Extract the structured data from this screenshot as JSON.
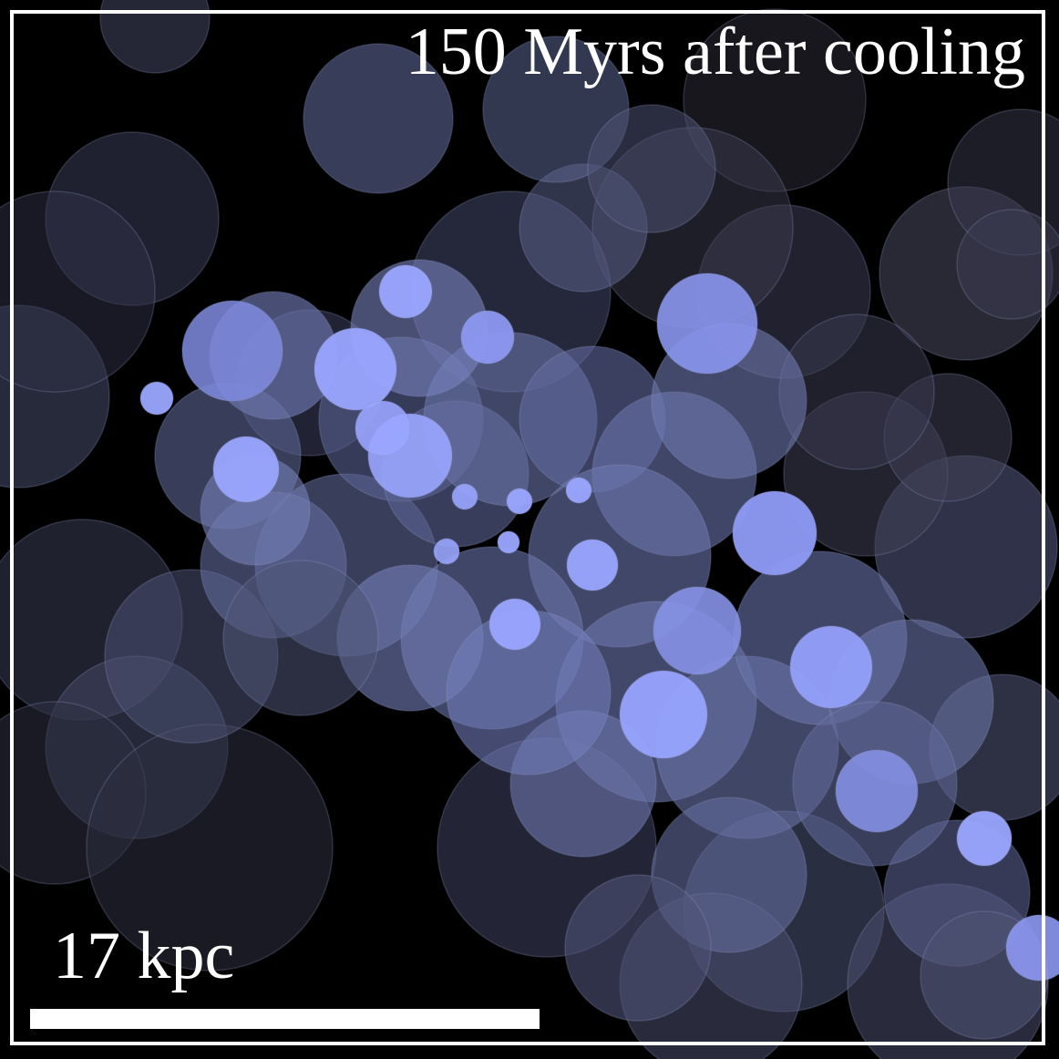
{
  "overlay": {
    "time_label": "150 Myrs after cooling",
    "scale_label": "17 kpc"
  },
  "colors": {
    "background": "#000000",
    "bright_blob": "#9aa6ff",
    "dim_blob": "#3b3f5c",
    "text": "#ffffff"
  }
}
